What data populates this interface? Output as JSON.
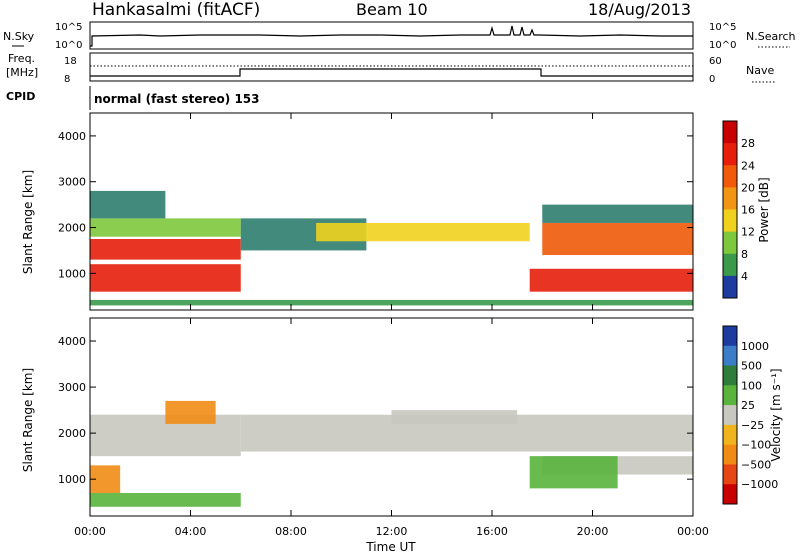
{
  "header": {
    "station": "Hankasalmi (fitACF)",
    "beam": "Beam 10",
    "date": "18/Aug/2013"
  },
  "status_panel": {
    "nsky_label": "N.Sky",
    "nsky_ticks": [
      "10^5",
      "10^0"
    ],
    "nsearch_label": "N.Search",
    "nsearch_ticks": [
      "10^5",
      "10^0"
    ],
    "freq_label_1": "Freq.",
    "freq_label_2": "[MHz]",
    "freq_ticks": [
      "18",
      "8"
    ],
    "nave_label": "Nave",
    "nave_ticks": [
      "60",
      "0"
    ],
    "cpid_label": "CPID",
    "cpid_text": "normal (fast stereo) 153"
  },
  "colors": {
    "power_scale": [
      "#0000ff",
      "#1e3ca0",
      "#2e7d6e",
      "#3a9a4a",
      "#7dc83c",
      "#f0d21e",
      "#f09614",
      "#f05a0a",
      "#e61e0a",
      "#c80000"
    ],
    "velocity_scale": [
      "#1e3ca0",
      "#3c7dc8",
      "#2e7d3a",
      "#5ab43c",
      "#8cd25a",
      "#c8c8c0",
      "#c8c8c0",
      "#f0b41e",
      "#f08c14",
      "#e64614",
      "#c80000"
    ]
  },
  "chart_data": [
    {
      "type": "heatmap",
      "panel": "power",
      "ylabel": "Slant Range [km]",
      "ylim": [
        200,
        4500
      ],
      "yticks": [
        "1000",
        "2000",
        "3000",
        "4000"
      ],
      "colorbar_label": "Power [dB]",
      "colorbar_ticks": [
        "4",
        "8",
        "12",
        "16",
        "20",
        "24",
        "28"
      ],
      "colorbar_range": [
        0,
        32
      ],
      "bands": [
        {
          "t0": 0.0,
          "t1": 6.0,
          "r0": 600,
          "r1": 1200,
          "value": 28
        },
        {
          "t0": 0.0,
          "t1": 6.0,
          "r0": 1300,
          "r1": 1750,
          "value": 26
        },
        {
          "t0": 0.0,
          "t1": 6.0,
          "r0": 1800,
          "r1": 2200,
          "value": 14
        },
        {
          "t0": 0.0,
          "t1": 3.0,
          "r0": 2200,
          "r1": 2800,
          "value": 8
        },
        {
          "t0": 6.0,
          "t1": 11.0,
          "r0": 1500,
          "r1": 2200,
          "value": 8
        },
        {
          "t0": 9.0,
          "t1": 17.5,
          "r0": 1700,
          "r1": 2100,
          "value": 18
        },
        {
          "t0": 17.5,
          "t1": 24.0,
          "r0": 600,
          "r1": 1100,
          "value": 26
        },
        {
          "t0": 18.0,
          "t1": 24.0,
          "r0": 1400,
          "r1": 2100,
          "value": 24
        },
        {
          "t0": 18.0,
          "t1": 24.0,
          "r0": 2100,
          "r1": 2500,
          "value": 8
        },
        {
          "t0": 0.0,
          "t1": 24.0,
          "r0": 300,
          "r1": 420,
          "value": 12
        }
      ]
    },
    {
      "type": "heatmap",
      "panel": "velocity",
      "ylabel": "Slant Range [km]",
      "xlabel": "Time UT",
      "ylim": [
        200,
        4500
      ],
      "yticks": [
        "1000",
        "2000",
        "3000",
        "4000"
      ],
      "xticks": [
        "00:00",
        "04:00",
        "08:00",
        "12:00",
        "16:00",
        "20:00",
        "00:00"
      ],
      "xlim": [
        0,
        24
      ],
      "colorbar_label": "Velocity [m s⁻¹]",
      "colorbar_ticks": [
        "1000",
        "500",
        "100",
        "25",
        "−25",
        "−100",
        "−500",
        "−1000"
      ],
      "bands": [
        {
          "t0": 0.0,
          "t1": 6.0,
          "r0": 1500,
          "r1": 2400,
          "value": 0
        },
        {
          "t0": 0.0,
          "t1": 1.2,
          "r0": 700,
          "r1": 1300,
          "value": -300
        },
        {
          "t0": 3.0,
          "t1": 5.0,
          "r0": 2200,
          "r1": 2700,
          "value": -300
        },
        {
          "t0": 0.0,
          "t1": 6.0,
          "r0": 400,
          "r1": 700,
          "value": 50
        },
        {
          "t0": 6.0,
          "t1": 24.0,
          "r0": 1600,
          "r1": 2400,
          "value": 0
        },
        {
          "t0": 18.0,
          "t1": 24.0,
          "r0": 1100,
          "r1": 1500,
          "value": 0
        },
        {
          "t0": 17.5,
          "t1": 21.0,
          "r0": 800,
          "r1": 1500,
          "value": 80
        },
        {
          "t0": 12.0,
          "t1": 17.0,
          "r0": 2200,
          "r1": 2500,
          "value": 0
        }
      ]
    }
  ]
}
